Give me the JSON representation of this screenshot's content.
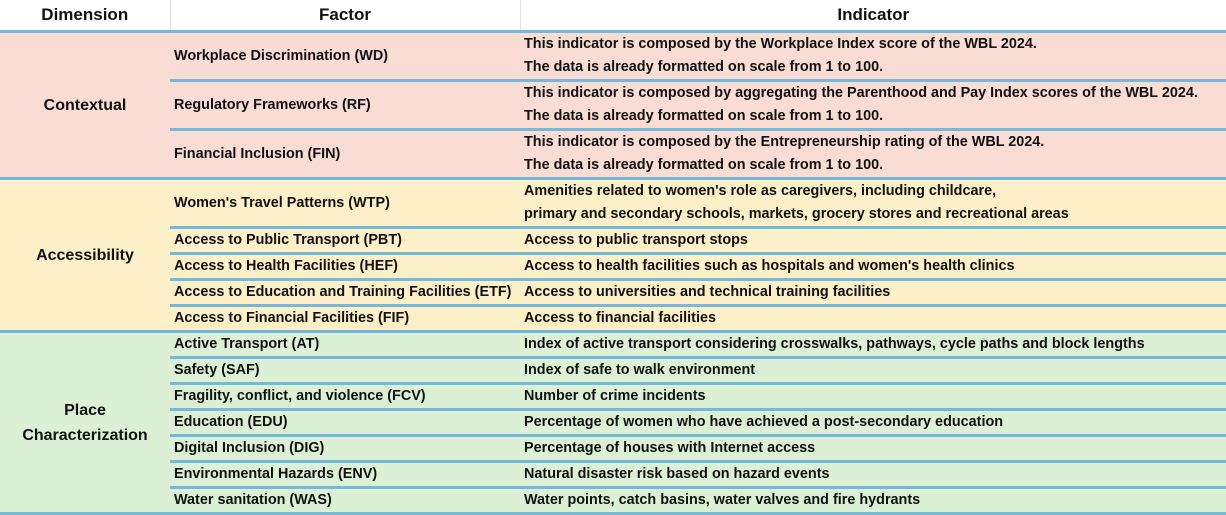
{
  "headers": [
    "Dimension",
    "Factor",
    "Indicator"
  ],
  "groups": [
    {
      "dimension": "Contextual",
      "rows": [
        {
          "factor": "Workplace Discrimination (WD)",
          "indicator": [
            "This indicator is composed by the Workplace Index score of the WBL 2024.",
            "The data is already formatted on scale from 1 to 100."
          ]
        },
        {
          "factor": "Regulatory Frameworks (RF)",
          "indicator": [
            "This indicator is composed by aggregating the Parenthood and Pay Index scores of the WBL 2024.",
            "The data is already formatted on scale from 1 to 100."
          ]
        },
        {
          "factor": "Financial Inclusion (FIN)",
          "indicator": [
            "This indicator is composed by the Entrepreneurship rating of the WBL 2024.",
            "The data is already formatted on scale from 1 to 100."
          ]
        }
      ]
    },
    {
      "dimension": "Accessibility",
      "rows": [
        {
          "factor": "Women's Travel Patterns (WTP)",
          "indicator": [
            "Amenities related to women's role as caregivers, including childcare,",
            "primary and secondary schools, markets, grocery stores and recreational areas"
          ]
        },
        {
          "factor": "Access to Public Transport (PBT)",
          "indicator": [
            "Access to public transport stops"
          ]
        },
        {
          "factor": "Access to Health Facilities (HEF)",
          "indicator": [
            "Access to health facilities such as hospitals and women's health clinics"
          ]
        },
        {
          "factor": "Access to Education and Training Facilities (ETF)",
          "indicator": [
            "Access to universities and technical training facilities"
          ]
        },
        {
          "factor": "Access to Financial Facilities (FIF)",
          "indicator": [
            "Access to financial facilities"
          ]
        }
      ]
    },
    {
      "dimension": [
        "Place",
        "Characterization"
      ],
      "rows": [
        {
          "factor": "Active Transport (AT)",
          "indicator": [
            "Index of active transport considering crosswalks, pathways, cycle paths and block lengths"
          ]
        },
        {
          "factor": "Safety (SAF)",
          "indicator": [
            "Index of safe to walk environment"
          ]
        },
        {
          "factor": "Fragility, conflict, and violence (FCV)",
          "indicator": [
            "Number of crime incidents"
          ]
        },
        {
          "factor": "Education (EDU)",
          "indicator": [
            "Percentage of women who have achieved a post-secondary education"
          ]
        },
        {
          "factor": "Digital Inclusion (DIG)",
          "indicator": [
            "Percentage of houses with Internet access"
          ]
        },
        {
          "factor": "Environmental Hazards (ENV)",
          "indicator": [
            "Natural disaster risk based on hazard events"
          ]
        },
        {
          "factor": "Water sanitation (WAS)",
          "indicator": [
            "Water points, catch basins, water valves and fire hydrants"
          ]
        }
      ]
    }
  ]
}
